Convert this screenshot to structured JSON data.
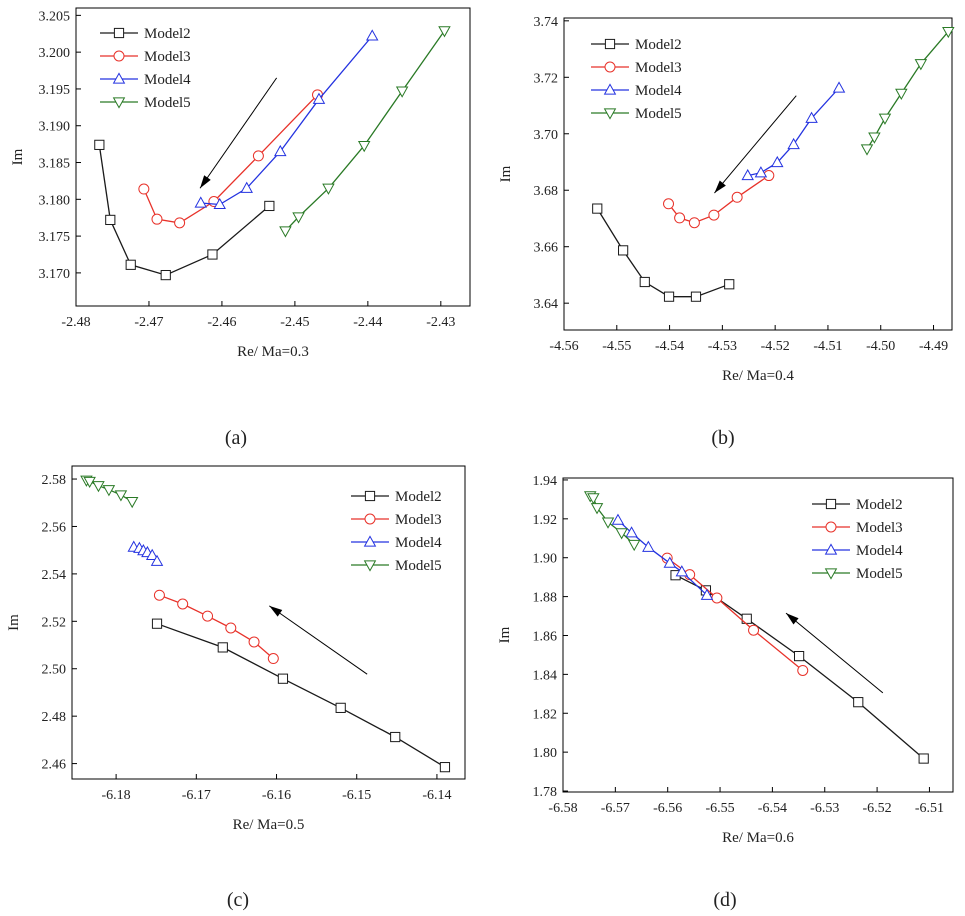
{
  "panel_labels": [
    "(a)",
    "(b)",
    "(c)",
    "(d)"
  ],
  "colors": {
    "Model2": "#1a1a1a",
    "Model3": "#e8322a",
    "Model4": "#2433e0",
    "Model5": "#2a7a26"
  },
  "chart_data": [
    {
      "type": "line",
      "title": "",
      "xlabel": "Re/ Ma=0.3",
      "ylabel": "Im",
      "xlim": [
        -2.48,
        -2.426
      ],
      "ylim": [
        3.1655,
        3.206
      ],
      "xticks": [
        -2.48,
        -2.47,
        -2.46,
        -2.45,
        -2.44,
        -2.43
      ],
      "xtick_labels": [
        "-2.48",
        "-2.47",
        "-2.46",
        "-2.45",
        "-2.44",
        "-2.43"
      ],
      "yticks": [
        3.17,
        3.175,
        3.18,
        3.185,
        3.19,
        3.195,
        3.2,
        3.205
      ],
      "ytick_labels": [
        "3.170",
        "3.175",
        "3.180",
        "3.185",
        "3.190",
        "3.195",
        "3.200",
        "3.205"
      ],
      "legend_position": "top-left",
      "arrow": {
        "from": [
          -2.4525,
          3.1965
        ],
        "to": [
          -2.463,
          3.1815
        ]
      },
      "series": [
        {
          "name": "Model2",
          "marker": "square",
          "x": [
            -2.4768,
            -2.4753,
            -2.4725,
            -2.4677,
            -2.4613,
            -2.4535
          ],
          "y": [
            3.1874,
            3.1772,
            3.1711,
            3.1697,
            3.1725,
            3.1791
          ]
        },
        {
          "name": "Model3",
          "marker": "circle",
          "x": [
            -2.4707,
            -2.4689,
            -2.4658,
            -2.4611,
            -2.455,
            -2.4469
          ],
          "y": [
            3.1814,
            3.1773,
            3.1768,
            3.1797,
            3.1859,
            3.1942
          ]
        },
        {
          "name": "Model4",
          "marker": "triangle-up",
          "x": [
            -2.4629,
            -2.4603,
            -2.4566,
            -2.452,
            -2.4467,
            -2.4394
          ],
          "y": [
            3.1795,
            3.1793,
            3.1815,
            3.1865,
            3.1936,
            3.2022
          ]
        },
        {
          "name": "Model5",
          "marker": "triangle-down",
          "x": [
            -2.4513,
            -2.4495,
            -2.4454,
            -2.4405,
            -2.4353,
            -2.4295
          ],
          "y": [
            3.1757,
            3.1776,
            3.1815,
            3.1873,
            3.1947,
            3.2029
          ]
        }
      ]
    },
    {
      "type": "line",
      "title": "",
      "xlabel": "Re/ Ma=0.4",
      "ylabel": "Im",
      "xlim": [
        -4.56,
        -4.4865
      ],
      "ylim": [
        3.6305,
        3.741
      ],
      "xticks": [
        -4.56,
        -4.55,
        -4.54,
        -4.53,
        -4.52,
        -4.51,
        -4.5,
        -4.49
      ],
      "xtick_labels": [
        "-4.56",
        "-4.55",
        "-4.54",
        "-4.53",
        "-4.52",
        "-4.51",
        "-4.50",
        "-4.49"
      ],
      "yticks": [
        3.64,
        3.66,
        3.68,
        3.7,
        3.72,
        3.74
      ],
      "ytick_labels": [
        "3.64",
        "3.66",
        "3.68",
        "3.70",
        "3.72",
        "3.74"
      ],
      "legend_position": "top-left",
      "arrow": {
        "from": [
          -4.516,
          3.7135
        ],
        "to": [
          -4.5315,
          3.679
        ]
      },
      "series": [
        {
          "name": "Model2",
          "marker": "square",
          "x": [
            -4.5537,
            -4.5488,
            -4.5447,
            -4.5401,
            -4.535,
            -4.5287
          ],
          "y": [
            3.6735,
            3.6587,
            3.6475,
            3.6423,
            3.6423,
            3.6467
          ]
        },
        {
          "name": "Model3",
          "marker": "circle",
          "x": [
            -4.5402,
            -4.5381,
            -4.5353,
            -4.5316,
            -4.5272,
            -4.5212
          ],
          "y": [
            3.6752,
            3.6702,
            3.6685,
            3.6712,
            3.6775,
            3.6852
          ]
        },
        {
          "name": "Model4",
          "marker": "triangle-up",
          "x": [
            -4.5252,
            -4.5227,
            -4.5196,
            -4.5165,
            -4.5131,
            -4.5079
          ],
          "y": [
            3.6852,
            3.6862,
            3.6898,
            3.6962,
            3.7055,
            3.7162
          ]
        },
        {
          "name": "Model5",
          "marker": "triangle-down",
          "x": [
            -4.5026,
            -4.5012,
            -4.4992,
            -4.4961,
            -4.4924,
            -4.4872
          ],
          "y": [
            3.6946,
            3.6988,
            3.7055,
            3.7143,
            3.7248,
            3.7362
          ]
        }
      ]
    },
    {
      "type": "line",
      "title": "",
      "xlabel": "Re/ Ma=0.5",
      "ylabel": "Im",
      "xlim": [
        -6.1855,
        -6.1365
      ],
      "ylim": [
        2.4535,
        2.5855
      ],
      "xticks": [
        -6.18,
        -6.17,
        -6.16,
        -6.15,
        -6.14
      ],
      "xtick_labels": [
        "-6.18",
        "-6.17",
        "-6.16",
        "-6.15",
        "-6.14"
      ],
      "yticks": [
        2.46,
        2.48,
        2.5,
        2.52,
        2.54,
        2.56,
        2.58
      ],
      "ytick_labels": [
        "2.46",
        "2.48",
        "2.50",
        "2.52",
        "2.54",
        "2.56",
        "2.58"
      ],
      "legend_position": "top-right",
      "arrow": {
        "from": [
          -6.1487,
          2.4977
        ],
        "to": [
          -6.1609,
          2.5265
        ]
      },
      "series": [
        {
          "name": "Model2",
          "marker": "square",
          "x": [
            -6.1749,
            -6.1667,
            -6.1592,
            -6.152,
            -6.1452,
            -6.139
          ],
          "y": [
            2.519,
            2.509,
            2.4958,
            2.4835,
            2.4712,
            2.4585
          ]
        },
        {
          "name": "Model3",
          "marker": "circle",
          "x": [
            -6.1746,
            -6.1717,
            -6.1686,
            -6.1657,
            -6.1628,
            -6.1604
          ],
          "y": [
            2.531,
            2.5273,
            2.5222,
            2.5172,
            2.5113,
            2.5043
          ]
        },
        {
          "name": "Model4",
          "marker": "triangle-up",
          "x": [
            -6.1778,
            -6.1771,
            -6.1766,
            -6.1761,
            -6.1755,
            -6.1749
          ],
          "y": [
            2.5513,
            2.5508,
            2.5498,
            2.549,
            2.5478,
            2.5453
          ]
        },
        {
          "name": "Model5",
          "marker": "triangle-down",
          "x": [
            -6.1837,
            -6.1833,
            -6.1822,
            -6.1809,
            -6.1794,
            -6.178
          ],
          "y": [
            2.5795,
            2.579,
            2.5772,
            2.5755,
            2.5733,
            2.5705
          ]
        }
      ]
    },
    {
      "type": "line",
      "title": "",
      "xlabel": "Re/ Ma=0.6",
      "ylabel": "Im",
      "xlim": [
        -6.58,
        -6.5055
      ],
      "ylim": [
        1.7795,
        1.941
      ],
      "xticks": [
        -6.58,
        -6.57,
        -6.56,
        -6.55,
        -6.54,
        -6.53,
        -6.52,
        -6.51
      ],
      "xtick_labels": [
        "-6.58",
        "-6.57",
        "-6.56",
        "-6.55",
        "-6.54",
        "-6.53",
        "-6.52",
        "-6.51"
      ],
      "yticks": [
        1.78,
        1.8,
        1.82,
        1.84,
        1.86,
        1.88,
        1.9,
        1.92,
        1.94
      ],
      "ytick_labels": [
        "1.78",
        "1.80",
        "1.82",
        "1.84",
        "1.86",
        "1.88",
        "1.90",
        "1.92",
        "1.94"
      ],
      "legend_position": "top-right",
      "arrow": {
        "from": [
          -6.5189,
          1.8305
        ],
        "to": [
          -6.5374,
          1.8715
        ]
      },
      "series": [
        {
          "name": "Model2",
          "marker": "square",
          "x": [
            -6.5585,
            -6.5527,
            -6.5449,
            -6.5349,
            -6.5236,
            -6.5111
          ],
          "y": [
            1.891,
            1.8832,
            1.8686,
            1.8494,
            1.8257,
            1.7967
          ]
        },
        {
          "name": "Model3",
          "marker": "circle",
          "x": [
            -6.5601,
            -6.5558,
            -6.5506,
            -6.5436,
            -6.5342
          ],
          "y": [
            1.8998,
            1.8913,
            1.8793,
            1.8627,
            1.842
          ]
        },
        {
          "name": "Model4",
          "marker": "triangle-up",
          "x": [
            -6.5695,
            -6.5669,
            -6.5637,
            -6.5596,
            -6.5573,
            -6.5525
          ],
          "y": [
            1.9193,
            1.9128,
            1.9054,
            1.8972,
            1.8928,
            1.8807
          ]
        },
        {
          "name": "Model5",
          "marker": "triangle-down",
          "x": [
            -6.5748,
            -6.5742,
            -6.5735,
            -6.5714,
            -6.5688,
            -6.5664
          ],
          "y": [
            1.9318,
            1.9308,
            1.9257,
            1.9183,
            1.9128,
            1.9068
          ]
        }
      ]
    }
  ]
}
